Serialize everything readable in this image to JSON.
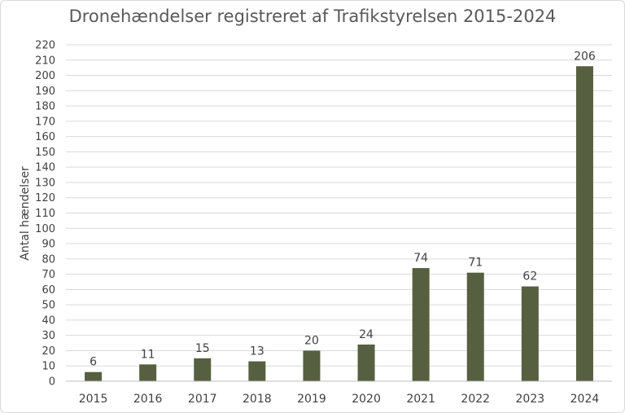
{
  "chart_data": {
    "type": "bar",
    "title": "Dronehændelser registreret af Trafikstyrelsen 2015-2024",
    "xlabel": "",
    "ylabel": "Antal hændelser",
    "categories": [
      "2015",
      "2016",
      "2017",
      "2018",
      "2019",
      "2020",
      "2021",
      "2022",
      "2023",
      "2024"
    ],
    "values": [
      6,
      11,
      15,
      13,
      20,
      24,
      74,
      71,
      62,
      206
    ],
    "ylim": [
      0,
      220
    ],
    "ytick_step": 10,
    "grid": true,
    "data_labels": true,
    "bar_color": "#566040",
    "grid_color": "#d9d9d9"
  }
}
